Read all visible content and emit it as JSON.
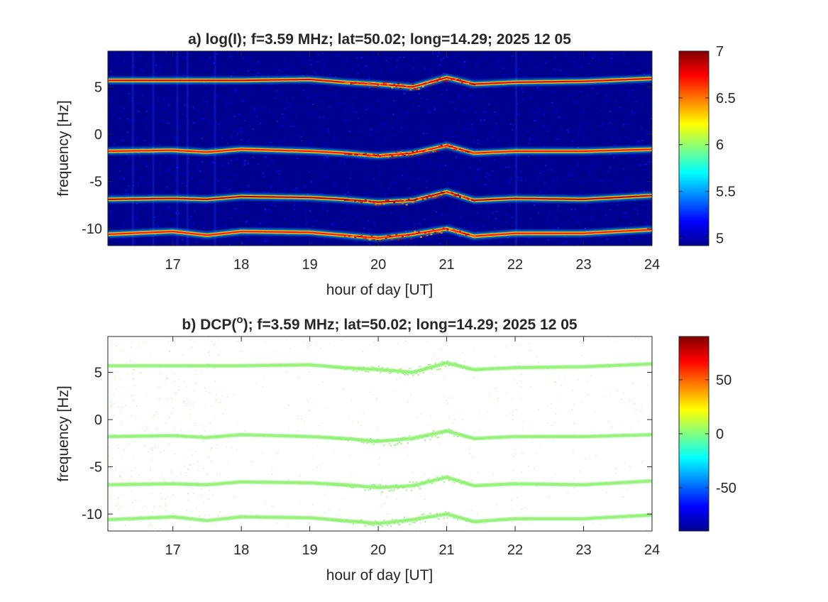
{
  "chart_data": [
    {
      "type": "heatmap",
      "title": "a) log(I); f=3.59 MHz;  lat=50.02; long=14.29; 2025 12 05",
      "xlabel": "hour of day [UT]",
      "ylabel": "frequency [Hz]",
      "xlim": [
        16.05,
        24.0
      ],
      "ylim": [
        -11.8,
        8.8
      ],
      "x_ticks": [
        "17",
        "18",
        "19",
        "20",
        "21",
        "22",
        "23",
        "24"
      ],
      "y_ticks": [
        "5",
        "0",
        "-5",
        "-10"
      ],
      "colorbar": {
        "colormap": "jet",
        "range": [
          4.92,
          7.0
        ],
        "ticks": [
          "7",
          "6.5",
          "6",
          "5.5",
          "5"
        ]
      },
      "background_value": 4.95,
      "traces": [
        {
          "x": [
            16.05,
            17.0,
            18.0,
            19.0,
            19.5,
            20.0,
            20.5,
            21.0,
            21.4,
            22.0,
            23.0,
            24.0
          ],
          "y": [
            5.7,
            5.7,
            5.7,
            5.8,
            5.5,
            5.3,
            5.0,
            6.0,
            5.3,
            5.5,
            5.6,
            5.9
          ],
          "peak": 6.8
        },
        {
          "x": [
            16.05,
            17.0,
            17.5,
            18.0,
            19.0,
            19.5,
            20.0,
            20.5,
            21.0,
            21.4,
            22.0,
            23.0,
            24.0
          ],
          "y": [
            -1.8,
            -1.7,
            -1.9,
            -1.6,
            -1.8,
            -2.0,
            -2.3,
            -2.0,
            -1.2,
            -2.0,
            -1.8,
            -1.8,
            -1.6
          ],
          "peak": 6.7
        },
        {
          "x": [
            16.05,
            17.0,
            17.5,
            18.0,
            19.0,
            19.5,
            20.0,
            20.5,
            21.0,
            21.4,
            22.0,
            23.0,
            24.0
          ],
          "y": [
            -6.9,
            -6.8,
            -6.9,
            -6.6,
            -6.7,
            -6.9,
            -7.2,
            -7.0,
            -6.1,
            -7.0,
            -6.8,
            -6.9,
            -6.5
          ],
          "peak": 6.9
        },
        {
          "x": [
            16.05,
            17.0,
            17.5,
            18.0,
            19.0,
            19.5,
            20.0,
            20.5,
            21.0,
            21.4,
            22.0,
            23.0,
            24.0
          ],
          "y": [
            -10.6,
            -10.3,
            -10.7,
            -10.3,
            -10.4,
            -10.7,
            -11.0,
            -10.6,
            -10.0,
            -10.8,
            -10.5,
            -10.5,
            -10.1
          ],
          "peak": 6.7
        }
      ]
    },
    {
      "type": "heatmap",
      "title": "b) DCP(",
      "title_sup": "o",
      "title_tail": "); f=3.59 MHz;  lat=50.02; long=14.29; 2025 12 05",
      "xlabel": "hour of day [UT]",
      "ylabel": "frequency [Hz]",
      "xlim": [
        16.05,
        24.0
      ],
      "ylim": [
        -11.8,
        8.8
      ],
      "x_ticks": [
        "17",
        "18",
        "19",
        "20",
        "21",
        "22",
        "23",
        "24"
      ],
      "y_ticks": [
        "5",
        "0",
        "-5",
        "-10"
      ],
      "colorbar": {
        "colormap": "jet",
        "range": [
          -90,
          90
        ],
        "ticks": [
          "50",
          "0",
          "-50"
        ]
      },
      "trace_value": 5,
      "trace_color": "#8cf06e",
      "traces": [
        {
          "x": [
            16.05,
            17.0,
            18.0,
            19.0,
            19.5,
            20.0,
            20.5,
            21.0,
            21.4,
            22.0,
            23.0,
            24.0
          ],
          "y": [
            5.7,
            5.7,
            5.7,
            5.8,
            5.5,
            5.3,
            5.0,
            6.0,
            5.3,
            5.5,
            5.6,
            5.9
          ]
        },
        {
          "x": [
            16.05,
            17.0,
            17.5,
            18.0,
            19.0,
            19.5,
            20.0,
            20.5,
            21.0,
            21.4,
            22.0,
            23.0,
            24.0
          ],
          "y": [
            -1.8,
            -1.7,
            -1.9,
            -1.6,
            -1.8,
            -2.0,
            -2.3,
            -2.0,
            -1.2,
            -2.0,
            -1.8,
            -1.8,
            -1.6
          ]
        },
        {
          "x": [
            16.05,
            17.0,
            17.5,
            18.0,
            19.0,
            19.5,
            20.0,
            20.5,
            21.0,
            21.4,
            22.0,
            23.0,
            24.0
          ],
          "y": [
            -6.9,
            -6.8,
            -6.9,
            -6.6,
            -6.7,
            -6.9,
            -7.2,
            -7.0,
            -6.1,
            -7.0,
            -6.8,
            -6.9,
            -6.5
          ]
        },
        {
          "x": [
            16.05,
            17.0,
            17.5,
            18.0,
            19.0,
            19.5,
            20.0,
            20.5,
            21.0,
            21.4,
            22.0,
            23.0,
            24.0
          ],
          "y": [
            -10.6,
            -10.3,
            -10.7,
            -10.3,
            -10.4,
            -10.7,
            -11.0,
            -10.6,
            -10.0,
            -10.8,
            -10.5,
            -10.5,
            -10.1
          ]
        }
      ]
    }
  ]
}
